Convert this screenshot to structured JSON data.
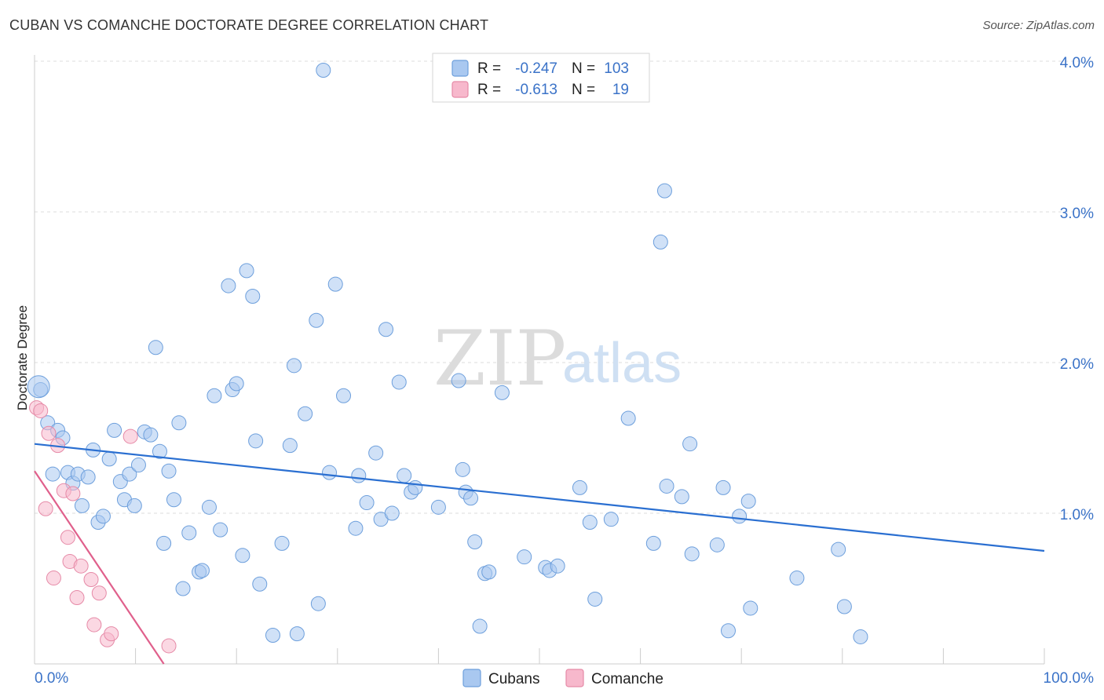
{
  "title": "CUBAN VS COMANCHE DOCTORATE DEGREE CORRELATION CHART",
  "source": "Source: ZipAtlas.com",
  "watermark": {
    "zip": "ZIP",
    "atlas": "atlas"
  },
  "legend": {
    "rows": [
      {
        "r_label": "R =",
        "r_value": "-0.247",
        "n_label": "N =",
        "n_value": "103",
        "color": "#a9c8f0"
      },
      {
        "r_label": "R =",
        "r_value": "-0.613",
        "n_label": "N =",
        "n_value": "19",
        "color": "#f7b8cc"
      }
    ]
  },
  "bottom_legend": [
    {
      "label": "Cubans",
      "color": "#a9c8f0"
    },
    {
      "label": "Comanche",
      "color": "#f7b8cc"
    }
  ],
  "chart_data": {
    "type": "scatter",
    "title": "CUBAN VS COMANCHE DOCTORATE DEGREE CORRELATION CHART",
    "xlabel": "",
    "ylabel": "Doctorate Degree",
    "xlim": [
      0,
      100
    ],
    "ylim": [
      0,
      4.15
    ],
    "x_tick_labels": [
      "0.0%",
      "100.0%"
    ],
    "y_ticks": [
      1.0,
      2.0,
      3.0,
      4.0
    ],
    "y_tick_labels": [
      "1.0%",
      "2.0%",
      "3.0%",
      "4.0%"
    ],
    "grid": true,
    "legend_position": "top-center",
    "series": [
      {
        "name": "Cubans",
        "color": "#a9c8f0",
        "stroke": "#6d9fdc",
        "trend": {
          "x": [
            0,
            100
          ],
          "y": [
            1.46,
            0.75
          ],
          "color": "#2a6fd1"
        },
        "points": [
          [
            0.6,
            1.82
          ],
          [
            1.3,
            1.6
          ],
          [
            1.8,
            1.26
          ],
          [
            2.3,
            1.55
          ],
          [
            2.8,
            1.5
          ],
          [
            3.3,
            1.27
          ],
          [
            3.8,
            1.2
          ],
          [
            4.3,
            1.26
          ],
          [
            4.7,
            1.05
          ],
          [
            5.3,
            1.24
          ],
          [
            5.8,
            1.42
          ],
          [
            6.3,
            0.94
          ],
          [
            6.8,
            0.98
          ],
          [
            7.4,
            1.36
          ],
          [
            7.9,
            1.55
          ],
          [
            8.5,
            1.21
          ],
          [
            8.9,
            1.09
          ],
          [
            9.4,
            1.26
          ],
          [
            9.9,
            1.05
          ],
          [
            10.3,
            1.32
          ],
          [
            10.9,
            1.54
          ],
          [
            11.5,
            1.52
          ],
          [
            12.0,
            2.1
          ],
          [
            12.4,
            1.41
          ],
          [
            12.8,
            0.8
          ],
          [
            13.3,
            1.28
          ],
          [
            13.8,
            1.09
          ],
          [
            14.3,
            1.6
          ],
          [
            14.7,
            0.5
          ],
          [
            15.3,
            0.87
          ],
          [
            16.3,
            0.61
          ],
          [
            16.6,
            0.62
          ],
          [
            17.3,
            1.04
          ],
          [
            17.8,
            1.78
          ],
          [
            18.4,
            0.89
          ],
          [
            19.2,
            2.51
          ],
          [
            19.6,
            1.82
          ],
          [
            20.0,
            1.86
          ],
          [
            20.6,
            0.72
          ],
          [
            21.0,
            2.61
          ],
          [
            21.6,
            2.44
          ],
          [
            21.9,
            1.48
          ],
          [
            22.3,
            0.53
          ],
          [
            23.6,
            0.19
          ],
          [
            24.5,
            0.8
          ],
          [
            25.3,
            1.45
          ],
          [
            25.7,
            1.98
          ],
          [
            26.0,
            0.2
          ],
          [
            26.8,
            1.66
          ],
          [
            27.9,
            2.28
          ],
          [
            28.1,
            0.4
          ],
          [
            28.6,
            3.94
          ],
          [
            29.2,
            1.27
          ],
          [
            29.8,
            2.52
          ],
          [
            30.6,
            1.78
          ],
          [
            31.8,
            0.9
          ],
          [
            32.1,
            1.25
          ],
          [
            32.9,
            1.07
          ],
          [
            33.8,
            1.4
          ],
          [
            34.3,
            0.96
          ],
          [
            34.8,
            2.22
          ],
          [
            35.4,
            1.0
          ],
          [
            36.1,
            1.87
          ],
          [
            36.6,
            1.25
          ],
          [
            37.3,
            1.14
          ],
          [
            37.7,
            1.17
          ],
          [
            40.0,
            1.04
          ],
          [
            42.0,
            1.88
          ],
          [
            42.4,
            1.29
          ],
          [
            42.7,
            1.14
          ],
          [
            43.2,
            1.1
          ],
          [
            43.6,
            0.81
          ],
          [
            44.1,
            0.25
          ],
          [
            44.6,
            0.6
          ],
          [
            45.0,
            0.61
          ],
          [
            46.3,
            1.8
          ],
          [
            48.5,
            0.71
          ],
          [
            50.6,
            0.64
          ],
          [
            51.0,
            0.62
          ],
          [
            51.8,
            0.65
          ],
          [
            54.0,
            1.17
          ],
          [
            55.0,
            0.94
          ],
          [
            55.5,
            0.43
          ],
          [
            57.1,
            0.96
          ],
          [
            58.8,
            1.63
          ],
          [
            61.3,
            0.8
          ],
          [
            62.0,
            2.8
          ],
          [
            62.4,
            3.14
          ],
          [
            62.6,
            1.18
          ],
          [
            64.1,
            1.11
          ],
          [
            64.9,
            1.46
          ],
          [
            65.1,
            0.73
          ],
          [
            67.6,
            0.79
          ],
          [
            68.2,
            1.17
          ],
          [
            68.7,
            0.22
          ],
          [
            69.8,
            0.98
          ],
          [
            70.7,
            1.08
          ],
          [
            70.9,
            0.37
          ],
          [
            75.5,
            0.57
          ],
          [
            79.6,
            0.76
          ],
          [
            80.2,
            0.38
          ],
          [
            81.8,
            0.18
          ],
          [
            0.4,
            1.84
          ]
        ]
      },
      {
        "name": "Comanche",
        "color": "#f7b8cc",
        "stroke": "#e68aa7",
        "trend": {
          "x": [
            0,
            12.8
          ],
          "y": [
            1.28,
            0.0
          ],
          "color": "#e0608c"
        },
        "points": [
          [
            0.2,
            1.7
          ],
          [
            0.6,
            1.68
          ],
          [
            1.1,
            1.03
          ],
          [
            1.4,
            1.53
          ],
          [
            1.9,
            0.57
          ],
          [
            2.3,
            1.45
          ],
          [
            2.9,
            1.15
          ],
          [
            3.3,
            0.84
          ],
          [
            3.5,
            0.68
          ],
          [
            3.8,
            1.13
          ],
          [
            4.2,
            0.44
          ],
          [
            4.6,
            0.65
          ],
          [
            5.6,
            0.56
          ],
          [
            5.9,
            0.26
          ],
          [
            6.4,
            0.47
          ],
          [
            7.2,
            0.16
          ],
          [
            7.6,
            0.2
          ],
          [
            9.5,
            1.51
          ],
          [
            13.3,
            0.12
          ]
        ]
      }
    ]
  }
}
